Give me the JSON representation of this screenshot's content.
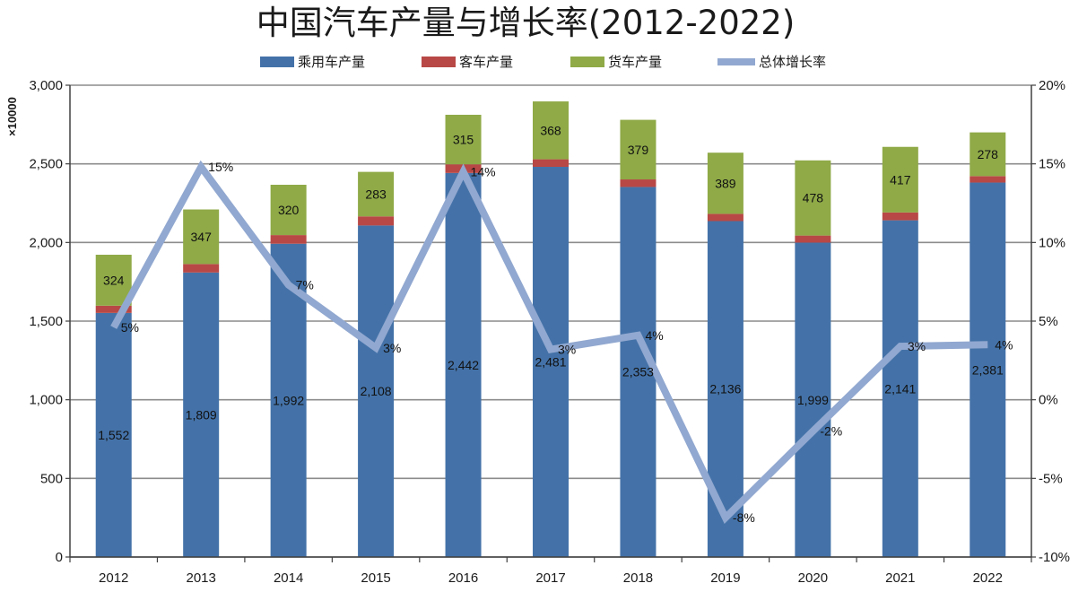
{
  "chart_data": {
    "type": "bar",
    "title": "中国汽车产量与增长率(2012-2022)",
    "ylabel": "×10000",
    "categories": [
      "2012",
      "2013",
      "2014",
      "2015",
      "2016",
      "2017",
      "2018",
      "2019",
      "2020",
      "2021",
      "2022"
    ],
    "ylim": [
      0,
      3000
    ],
    "yticks": [
      0,
      500,
      1000,
      1500,
      2000,
      2500,
      3000
    ],
    "ytick_labels": [
      "0",
      "500",
      "1,000",
      "1,500",
      "2,000",
      "2,500",
      "3,000"
    ],
    "y2lim": [
      -10,
      20
    ],
    "y2ticks": [
      -10,
      -5,
      0,
      5,
      10,
      15,
      20
    ],
    "y2tick_labels": [
      "-10%",
      "-5%",
      "0%",
      "5%",
      "10%",
      "15%",
      "20%"
    ],
    "grid": true,
    "legend_position": "top",
    "series": [
      {
        "name": "乘用车产量",
        "kind": "bar",
        "stack": true,
        "color": "#4472a8",
        "values": [
          1552,
          1809,
          1992,
          2108,
          2442,
          2481,
          2353,
          2136,
          1999,
          2141,
          2381
        ],
        "labels": [
          "1,552",
          "1,809",
          "1,992",
          "2,108",
          "2,442",
          "2,481",
          "2,353",
          "2,136",
          "1,999",
          "2,141",
          "2,381"
        ]
      },
      {
        "name": "客车产量",
        "kind": "bar",
        "stack": true,
        "color": "#b84845",
        "values": [
          46,
          54,
          55,
          58,
          55,
          48,
          48,
          46,
          45,
          50,
          41
        ]
      },
      {
        "name": "货车产量",
        "kind": "bar",
        "stack": true,
        "color": "#8faa47",
        "values": [
          324,
          347,
          320,
          283,
          315,
          368,
          379,
          389,
          478,
          417,
          278
        ],
        "labels": [
          "324",
          "347",
          "320",
          "283",
          "315",
          "368",
          "379",
          "389",
          "478",
          "417",
          "278"
        ]
      },
      {
        "name": "总体增长率",
        "kind": "line",
        "axis": "right",
        "color": "#91a8d0",
        "values": [
          4.6,
          14.8,
          7.3,
          3.3,
          14.5,
          3.2,
          4.1,
          -7.5,
          -2.0,
          3.4,
          3.5
        ],
        "labels": [
          "5%",
          "15%",
          "7%",
          "3%",
          "14%",
          "3%",
          "4%",
          "-8%",
          "-2%",
          "3%",
          "4%"
        ]
      }
    ]
  }
}
